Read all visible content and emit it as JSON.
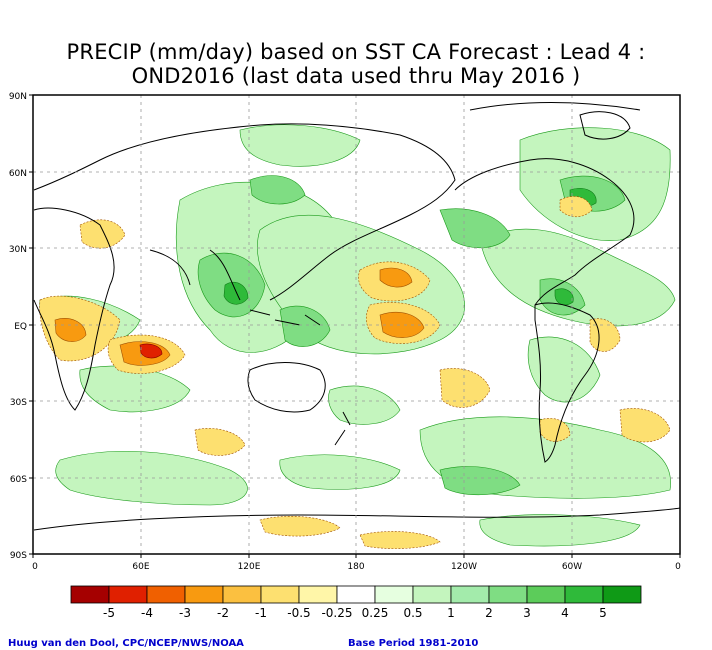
{
  "title_line1": "PRECIP (mm/day) based on SST CA Forecast : Lead 4 :",
  "title_line2": "OND2016 (last data used thru May 2016 )",
  "lat_labels": [
    "90N",
    "60N",
    "30N",
    "EQ",
    "30S",
    "60S",
    "90S"
  ],
  "lon_labels": [
    "0",
    "60E",
    "120E",
    "180",
    "120W",
    "60W",
    "0"
  ],
  "legend": {
    "labels": [
      "-5",
      "-4",
      "-3",
      "-2",
      "-1",
      "-0.5",
      "-0.25",
      "0.25",
      "0.5",
      "1",
      "2",
      "3",
      "4",
      "5"
    ],
    "colors": [
      "#a50000",
      "#e02000",
      "#f06000",
      "#f89a10",
      "#fbc040",
      "#fde070",
      "#fff6a8",
      "#ffffff",
      "#e6ffe0",
      "#c4f5be",
      "#a3ebab",
      "#7fdd83",
      "#5ccc5a",
      "#2fba3a",
      "#0f9a16"
    ]
  },
  "footer_left": "Huug van den Dool, CPC/NCEP/NWS/NOAA",
  "footer_right": "Base Period 1981-2010"
}
